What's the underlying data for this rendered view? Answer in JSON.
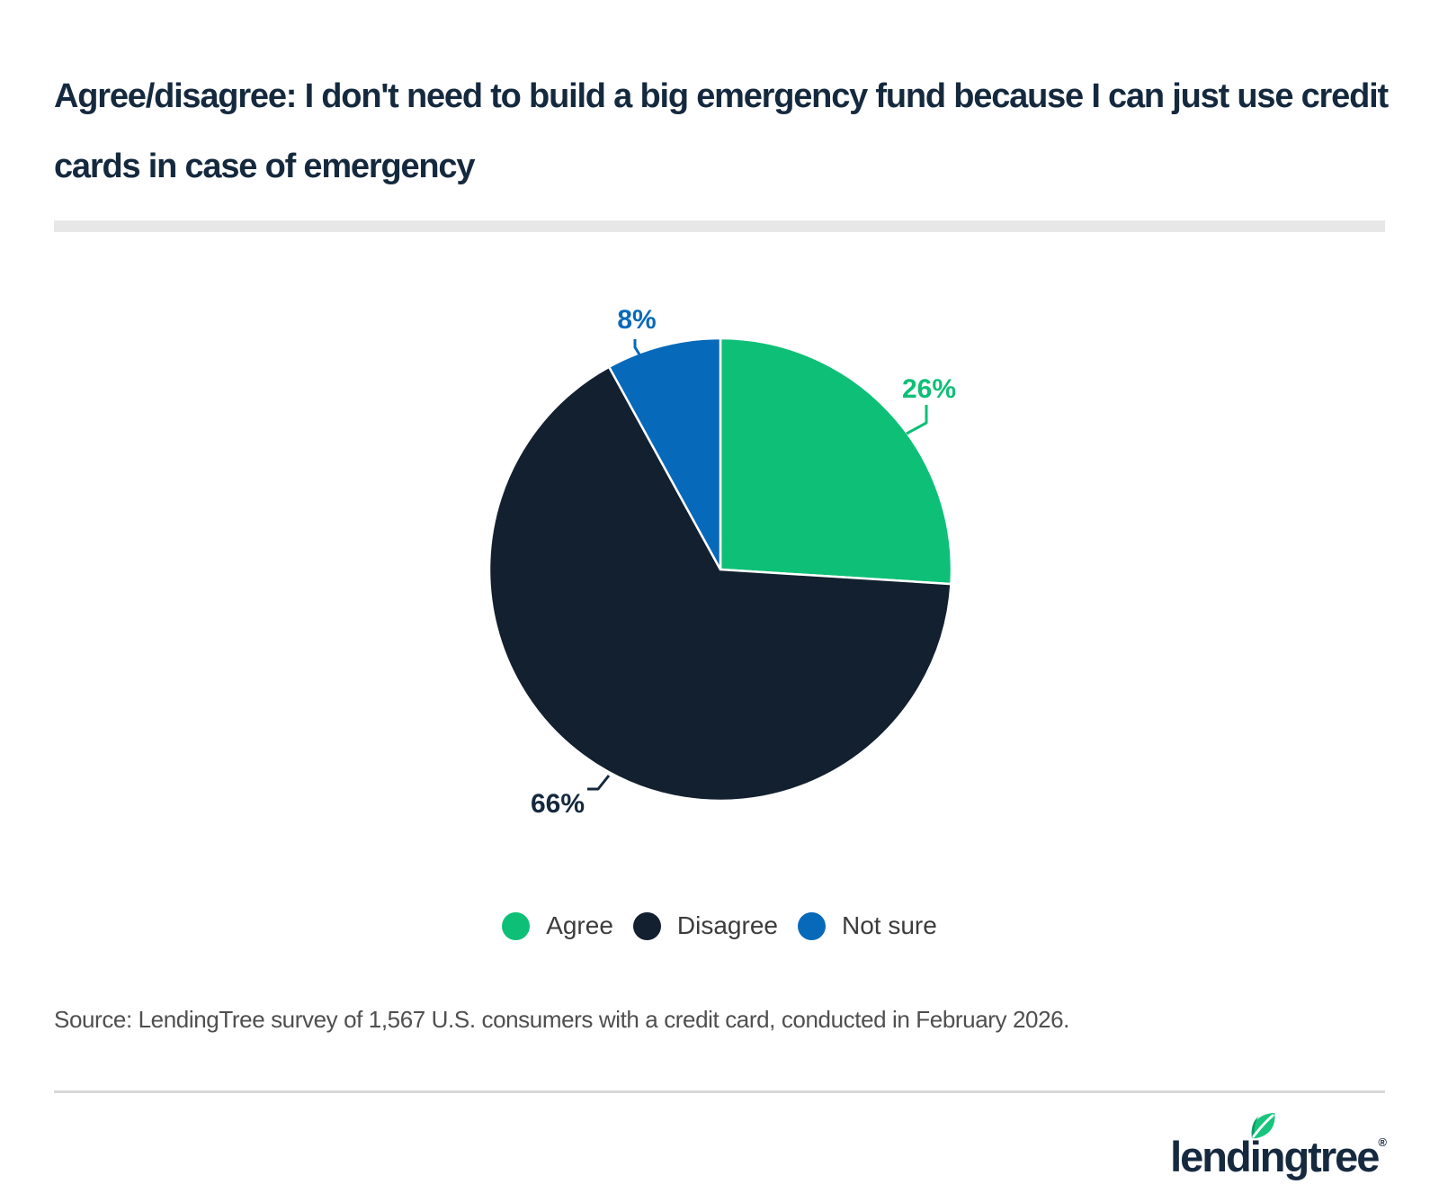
{
  "title": "Agree/disagree: I don't need to build a big emergency fund because I can just use credit cards in case of emergency",
  "source": "Source: LendingTree survey of 1,567 U.S. consumers with a credit card, conducted in February 2026.",
  "logo": {
    "brand": "lendingtree",
    "registered": "®"
  },
  "colors": {
    "title_text": "#15293e",
    "title_bar": "#e7e7e7",
    "legend_text": "#3c3c3c",
    "source_text": "#4f4f4f",
    "divider": "#d8d8d8",
    "slice_stroke": "#ffffff",
    "leaf_green": "#18c57d",
    "leaf_green_dark": "#0a9e63"
  },
  "chart_data": {
    "type": "pie",
    "title": "Agree/disagree: I don't need to build a big emergency fund because I can just use credit cards in case of emergency",
    "categories": [
      "Agree",
      "Disagree",
      "Not sure"
    ],
    "values": [
      26,
      66,
      8
    ],
    "unit": "%",
    "data_labels": [
      "26%",
      "66%",
      "8%"
    ],
    "colors": [
      "#0ec077",
      "#13202f",
      "#0769b9"
    ],
    "label_colors": [
      "#0ebf76",
      "#15293e",
      "#0769b9"
    ],
    "start_angle_deg": 0,
    "direction": "clockwise",
    "grid": false,
    "legend_position": "bottom"
  },
  "legend": {
    "items": [
      {
        "label": "Agree",
        "color": "#0ec077"
      },
      {
        "label": "Disagree",
        "color": "#13202f"
      },
      {
        "label": "Not sure",
        "color": "#0769b9"
      }
    ]
  }
}
